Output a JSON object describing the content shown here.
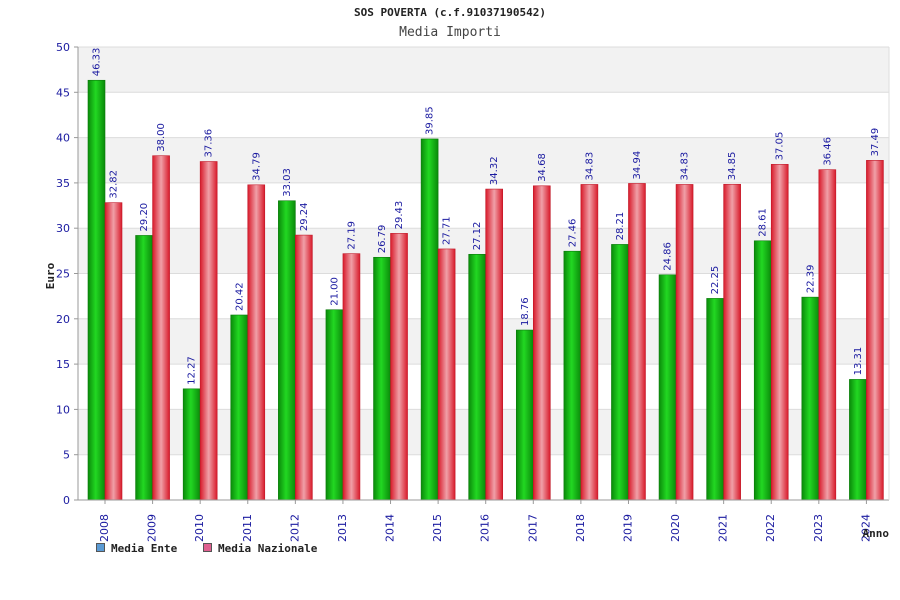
{
  "chart_data": {
    "type": "bar",
    "title": "SOS POVERTA (c.f.91037190542)",
    "subtitle": "Media Importi",
    "xlabel": "Anno",
    "ylabel": "Euro",
    "ylim": [
      0,
      50
    ],
    "yticks": [
      0,
      5,
      10,
      15,
      20,
      25,
      30,
      35,
      40,
      45,
      50
    ],
    "grid": "horizontal",
    "legend_position": "bottom-left",
    "categories": [
      "2008",
      "2009",
      "2010",
      "2011",
      "2012",
      "2013",
      "2014",
      "2015",
      "2016",
      "2017",
      "2018",
      "2019",
      "2020",
      "2021",
      "2022",
      "2023",
      "2024"
    ],
    "series": [
      {
        "name": "Media Ente",
        "color": "#1db31d",
        "legend_color": "#5b9bd5",
        "values": [
          46.33,
          29.2,
          12.27,
          20.42,
          33.03,
          21.0,
          26.79,
          39.85,
          27.12,
          18.76,
          27.46,
          28.21,
          24.86,
          22.25,
          28.61,
          22.39,
          13.31
        ],
        "labels": [
          "46.33",
          "29.20",
          "12.27",
          "20.42",
          "33.03",
          "21.00",
          "26.79",
          "39.85",
          "27.12",
          "18.76",
          "27.46",
          "28.21",
          "24.86",
          "22.25",
          "28.61",
          "22.39",
          "13.31"
        ]
      },
      {
        "name": "Media Nazionale",
        "color": "#e83848",
        "legend_color": "#e06090",
        "values": [
          32.82,
          38.0,
          37.36,
          34.79,
          29.24,
          27.19,
          29.43,
          27.71,
          34.32,
          34.68,
          34.83,
          34.94,
          34.83,
          34.85,
          37.05,
          36.46,
          37.49
        ],
        "labels": [
          "32.82",
          "38.00",
          "37.36",
          "34.79",
          "29.24",
          "27.19",
          "29.43",
          "27.71",
          "34.32",
          "34.68",
          "34.83",
          "34.94",
          "34.83",
          "34.85",
          "37.05",
          "36.46",
          "37.49"
        ]
      }
    ]
  }
}
